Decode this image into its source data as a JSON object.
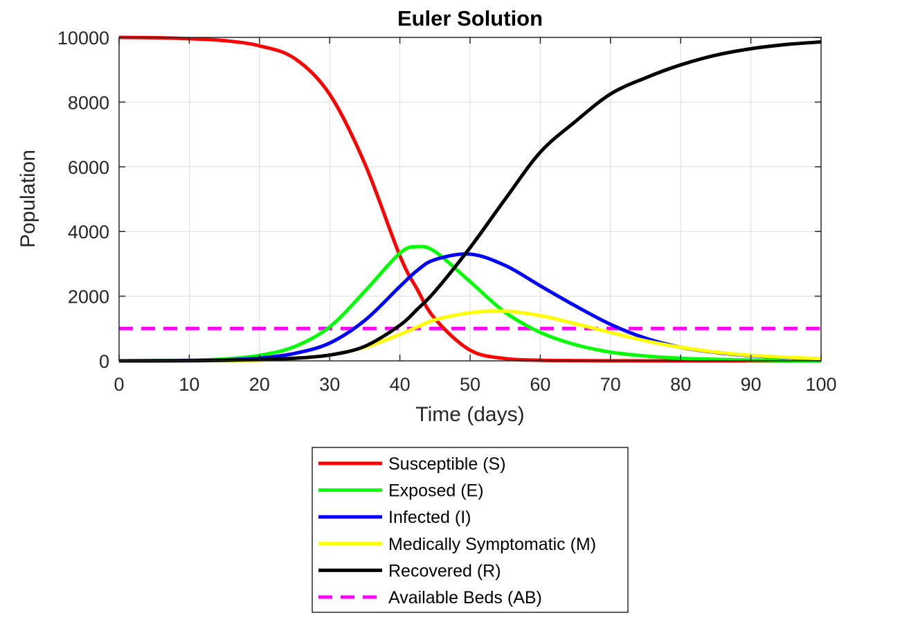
{
  "chart_data": {
    "type": "line",
    "title": "Euler Solution",
    "xlabel": "Time (days)",
    "ylabel": "Population",
    "xlim": [
      0,
      100
    ],
    "ylim": [
      0,
      10000
    ],
    "x_ticks": [
      0,
      10,
      20,
      30,
      40,
      50,
      60,
      70,
      80,
      90,
      100
    ],
    "y_ticks": [
      0,
      2000,
      4000,
      6000,
      8000,
      10000
    ],
    "grid": true,
    "legend_position": "bottom-outside",
    "x": [
      0,
      5,
      10,
      15,
      20,
      25,
      30,
      35,
      40,
      42.5,
      45,
      50,
      55,
      60,
      65,
      70,
      75,
      80,
      85,
      90,
      95,
      100
    ],
    "series": [
      {
        "name": "Susceptible (S)",
        "color": "#ff0000",
        "style": "solid",
        "values": [
          10000,
          9990,
          9960,
          9900,
          9740,
          9350,
          8240,
          6100,
          3250,
          2200,
          1300,
          330,
          70,
          20,
          8,
          3,
          1,
          0,
          0,
          0,
          0,
          0
        ]
      },
      {
        "name": "Exposed (E)",
        "color": "#00ff00",
        "style": "solid",
        "values": [
          0,
          5,
          20,
          55,
          170,
          440,
          1050,
          2150,
          3330,
          3530,
          3380,
          2450,
          1500,
          880,
          500,
          270,
          150,
          80,
          45,
          25,
          12,
          6
        ]
      },
      {
        "name": "Infected (I)",
        "color": "#0000ff",
        "style": "solid",
        "values": [
          0,
          5,
          10,
          30,
          85,
          230,
          550,
          1250,
          2300,
          2800,
          3130,
          3300,
          2950,
          2320,
          1700,
          1130,
          700,
          420,
          260,
          160,
          100,
          60
        ]
      },
      {
        "name": "Medically Symptomatic (M)",
        "color": "#ffff00",
        "style": "solid",
        "values": [
          0,
          0,
          3,
          8,
          25,
          70,
          180,
          420,
          820,
          1050,
          1270,
          1490,
          1540,
          1400,
          1150,
          880,
          620,
          420,
          270,
          170,
          110,
          70
        ]
      },
      {
        "name": "Recovered (R)",
        "color": "#000000",
        "style": "solid",
        "values": [
          0,
          0,
          5,
          15,
          40,
          80,
          180,
          450,
          1100,
          1600,
          2150,
          3500,
          5000,
          6450,
          7400,
          8250,
          8750,
          9150,
          9450,
          9650,
          9780,
          9860
        ]
      },
      {
        "name": "Available Beds (AB)",
        "color": "#ff00ff",
        "style": "dashed",
        "values": [
          1000,
          1000,
          1000,
          1000,
          1000,
          1000,
          1000,
          1000,
          1000,
          1000,
          1000,
          1000,
          1000,
          1000,
          1000,
          1000,
          1000,
          1000,
          1000,
          1000,
          1000,
          1000
        ]
      }
    ]
  }
}
